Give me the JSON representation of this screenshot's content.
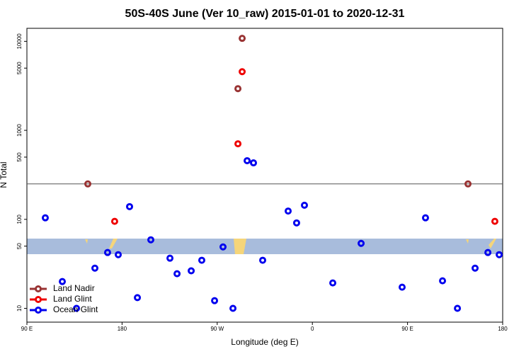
{
  "chart_data": {
    "type": "scatter",
    "title": "50S-40S June (Ver 10_raw)   2015-01-01 to 2020-12-31",
    "xlabel": "Longitude (deg E)",
    "ylabel": "N Total",
    "xlim": [
      90,
      540
    ],
    "xticks": [
      {
        "value": 90,
        "label": "90 E"
      },
      {
        "value": 180,
        "label": "180"
      },
      {
        "value": 270,
        "label": "90 W"
      },
      {
        "value": 360,
        "label": "0"
      },
      {
        "value": 450,
        "label": "90 E"
      },
      {
        "value": 540,
        "label": "180"
      }
    ],
    "ylim": [
      7,
      14000
    ],
    "log_y": true,
    "yticks": [
      10,
      50,
      100,
      500,
      1000,
      5000,
      10000
    ],
    "reference_line": 250,
    "legend": "lower left",
    "series": [
      {
        "name": "Land Nadir",
        "color": "#993333",
        "x": [
          147.6,
          293.6,
          289.6,
          507.2
        ],
        "values": [
          250,
          10800,
          2940,
          250
        ]
      },
      {
        "name": "Land Glint",
        "color": "#ee0000",
        "x": [
          173,
          293.6,
          289.6,
          532.6
        ],
        "values": [
          95,
          4560,
          706,
          95
        ]
      },
      {
        "name": "Ocean Glint",
        "color": "#0000ee",
        "x": [
          107.4,
          123.5,
          136.9,
          154.3,
          166.3,
          176.4,
          187.1,
          194.5,
          207.2,
          225.3,
          232,
          245.4,
          255.4,
          267.5,
          275.5,
          284.9,
          298.3,
          304.3,
          313,
          337.1,
          345.1,
          352.5,
          379.3,
          406.1,
          444.9,
          467,
          483.1,
          497.2,
          513.9,
          526,
          536.7
        ],
        "values": [
          104,
          20,
          10,
          28.3,
          42.4,
          40.1,
          139,
          13.2,
          58.9,
          36.6,
          24.5,
          26.4,
          34.7,
          12.2,
          49,
          10,
          456,
          431,
          34.7,
          124,
          91.2,
          144,
          19.3,
          53.7,
          17.3,
          104,
          20.4,
          10,
          28.3,
          42.4,
          40.1
        ]
      }
    ]
  }
}
